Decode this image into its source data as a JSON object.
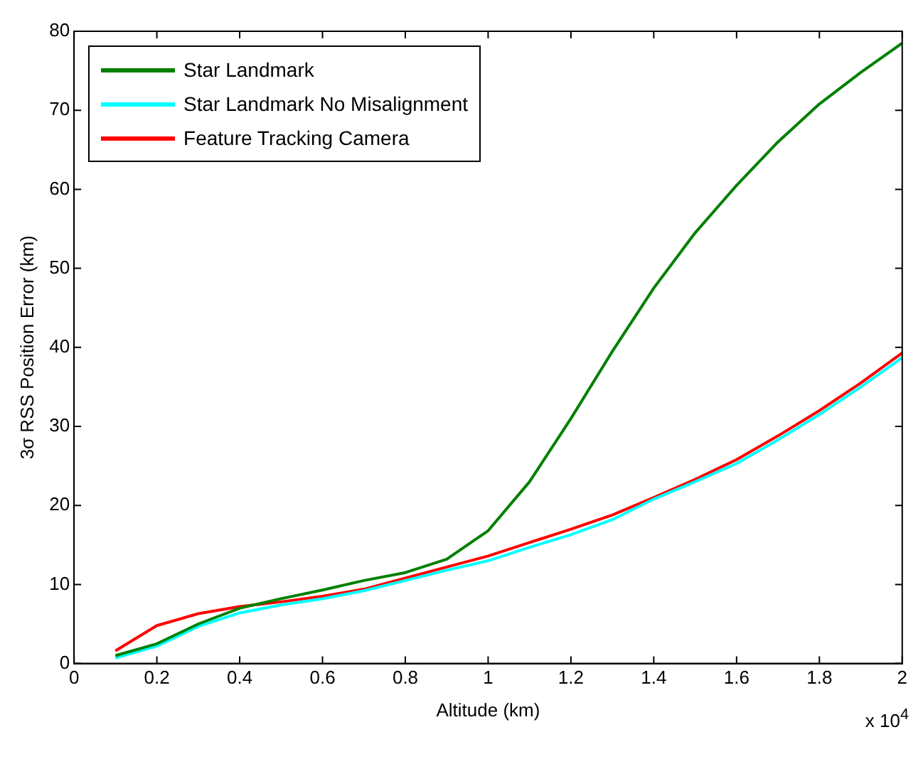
{
  "chart_data": {
    "type": "line",
    "xlabel": "Altitude (km)",
    "ylabel": "3σ RSS Position Error (km)",
    "annotations": [
      "x 10$^{4}$"
    ],
    "x": [
      0.1,
      0.2,
      0.3,
      0.4,
      0.5,
      0.6,
      0.7,
      0.8,
      0.9,
      1.0,
      1.1,
      1.2,
      1.3,
      1.4,
      1.5,
      1.6,
      1.7,
      1.8,
      1.9,
      2.0
    ],
    "series": [
      {
        "name": "Star Landmark",
        "color": "#008000",
        "values": [
          1.0,
          2.5,
          5.0,
          7.0,
          8.2,
          9.3,
          10.5,
          11.5,
          13.2,
          16.8,
          23,
          31,
          39.5,
          47.5,
          54.5,
          60.5,
          66,
          70.8,
          74.8,
          78.5
        ]
      },
      {
        "name": "Star Landmark No Misalignment",
        "color": "#00ffff",
        "values": [
          0.7,
          2.2,
          4.7,
          6.4,
          7.4,
          8.2,
          9.2,
          10.5,
          11.8,
          13.0,
          14.7,
          16.3,
          18.2,
          20.8,
          23.0,
          25.3,
          28.3,
          31.5,
          35,
          38.7
        ]
      },
      {
        "name": "Feature Tracking Camera",
        "color": "#ff0000",
        "values": [
          1.6,
          4.8,
          6.3,
          7.2,
          7.8,
          8.5,
          9.4,
          10.8,
          12.2,
          13.6,
          15.3,
          17.0,
          18.8,
          21.0,
          23.3,
          25.8,
          28.8,
          32,
          35.5,
          39.3
        ]
      }
    ],
    "xlim": [
      0,
      2
    ],
    "xticks": [
      0,
      0.2,
      0.4,
      0.6,
      0.8,
      1,
      1.2,
      1.4,
      1.6,
      1.8,
      2
    ],
    "ylim": [
      0,
      80
    ],
    "yticks": [
      0,
      10,
      20,
      30,
      40,
      50,
      60,
      70,
      80
    ],
    "grid": false,
    "legend": "top left",
    "marker": "none",
    "line_style": "solid"
  }
}
